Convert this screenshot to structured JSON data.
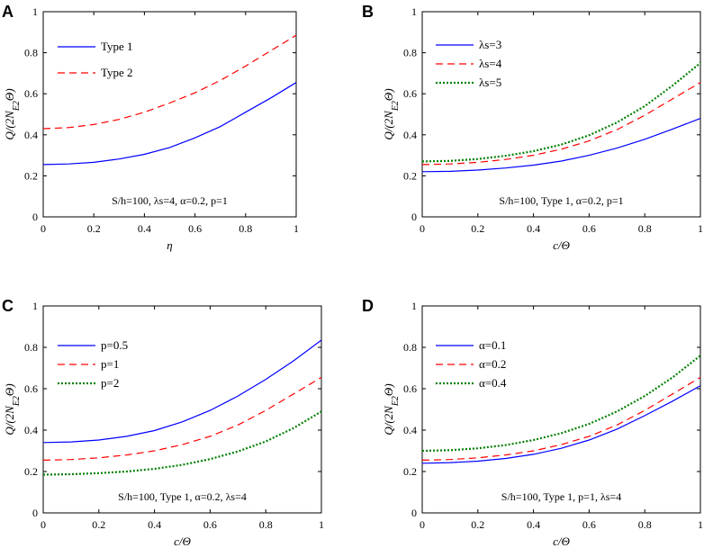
{
  "chart_data": [
    {
      "panel": "A",
      "type": "line",
      "title": "",
      "xlabel": "η",
      "ylabel": "Q/(2N_E2Θ)",
      "xlim": [
        0,
        1
      ],
      "ylim": [
        0,
        1
      ],
      "xticks": [
        "0",
        "0.2",
        "0.4",
        "0.6",
        "0.8",
        "1"
      ],
      "yticks": [
        "0",
        "0.2",
        "0.4",
        "0.6",
        "0.8",
        "1"
      ],
      "annotation": "S/h=100, λs=4, α=0.2, p=1",
      "legend_position": "top-left",
      "x": [
        0,
        0.1,
        0.2,
        0.3,
        0.4,
        0.5,
        0.6,
        0.7,
        0.8,
        0.9,
        1.0
      ],
      "series": [
        {
          "name": "Type 1",
          "color": "#0000ff",
          "dash": "solid",
          "values": [
            0.255,
            0.258,
            0.266,
            0.282,
            0.305,
            0.338,
            0.385,
            0.44,
            0.51,
            0.58,
            0.655
          ]
        },
        {
          "name": "Type 2",
          "color": "#ff0000",
          "dash": "dashed",
          "values": [
            0.43,
            0.435,
            0.45,
            0.475,
            0.51,
            0.555,
            0.605,
            0.665,
            0.735,
            0.81,
            0.885
          ]
        }
      ]
    },
    {
      "panel": "B",
      "type": "line",
      "title": "",
      "xlabel": "c/Θ",
      "ylabel": "Q/(2N_E2Θ)",
      "xlim": [
        0,
        1
      ],
      "ylim": [
        0,
        1
      ],
      "xticks": [
        "0",
        "0.2",
        "0.4",
        "0.6",
        "0.8",
        "1"
      ],
      "yticks": [
        "0",
        "0.2",
        "0.4",
        "0.6",
        "0.8",
        "1"
      ],
      "annotation": "S/h=100, Type 1, α=0.2, p=1",
      "legend_position": "top-left",
      "x": [
        0,
        0.1,
        0.2,
        0.3,
        0.4,
        0.5,
        0.6,
        0.7,
        0.8,
        0.9,
        1.0
      ],
      "series": [
        {
          "name": "λs=3",
          "color": "#0000ff",
          "dash": "solid",
          "values": [
            0.22,
            0.222,
            0.228,
            0.238,
            0.252,
            0.272,
            0.3,
            0.335,
            0.378,
            0.428,
            0.48
          ]
        },
        {
          "name": "λs=4",
          "color": "#ff0000",
          "dash": "dashed",
          "values": [
            0.255,
            0.258,
            0.266,
            0.28,
            0.3,
            0.33,
            0.37,
            0.425,
            0.495,
            0.575,
            0.655
          ]
        },
        {
          "name": "λs=5",
          "color": "#008000",
          "dash": "dotted",
          "values": [
            0.27,
            0.273,
            0.282,
            0.298,
            0.32,
            0.352,
            0.398,
            0.46,
            0.54,
            0.64,
            0.75
          ]
        }
      ]
    },
    {
      "panel": "C",
      "type": "line",
      "title": "",
      "xlabel": "c/Θ",
      "ylabel": "Q/(2N_E2Θ)",
      "xlim": [
        0,
        1
      ],
      "ylim": [
        0,
        1
      ],
      "xticks": [
        "0",
        "0.2",
        "0.4",
        "0.6",
        "0.8",
        "1"
      ],
      "yticks": [
        "0",
        "0.2",
        "0.4",
        "0.6",
        "0.8",
        "1"
      ],
      "annotation": "S/h=100, Type 1, α=0.2, λs=4",
      "legend_position": "top-left",
      "x": [
        0,
        0.1,
        0.2,
        0.3,
        0.4,
        0.5,
        0.6,
        0.7,
        0.8,
        0.9,
        1.0
      ],
      "series": [
        {
          "name": "p=0.5",
          "color": "#0000ff",
          "dash": "solid",
          "values": [
            0.34,
            0.343,
            0.352,
            0.37,
            0.398,
            0.44,
            0.495,
            0.565,
            0.645,
            0.735,
            0.835
          ]
        },
        {
          "name": "p=1",
          "color": "#ff0000",
          "dash": "dashed",
          "values": [
            0.255,
            0.258,
            0.266,
            0.28,
            0.3,
            0.33,
            0.37,
            0.425,
            0.495,
            0.575,
            0.655
          ]
        },
        {
          "name": "p=2",
          "color": "#008000",
          "dash": "dotted",
          "values": [
            0.185,
            0.187,
            0.192,
            0.2,
            0.213,
            0.232,
            0.26,
            0.297,
            0.345,
            0.41,
            0.49
          ]
        }
      ]
    },
    {
      "panel": "D",
      "type": "line",
      "title": "",
      "xlabel": "c/Θ",
      "ylabel": "Q/(2N_E2Θ)",
      "xlim": [
        0,
        1
      ],
      "ylim": [
        0,
        1
      ],
      "xticks": [
        "0",
        "0.2",
        "0.4",
        "0.6",
        "0.8",
        "1"
      ],
      "yticks": [
        "0",
        "0.2",
        "0.4",
        "0.6",
        "0.8",
        "1"
      ],
      "annotation": "S/h=100, Type 1, p=1, λs=4",
      "legend_position": "top-left",
      "x": [
        0,
        0.1,
        0.2,
        0.3,
        0.4,
        0.5,
        0.6,
        0.7,
        0.8,
        0.9,
        1.0
      ],
      "series": [
        {
          "name": "α=0.1",
          "color": "#0000ff",
          "dash": "solid",
          "values": [
            0.24,
            0.243,
            0.25,
            0.263,
            0.283,
            0.312,
            0.352,
            0.405,
            0.47,
            0.54,
            0.615
          ]
        },
        {
          "name": "α=0.2",
          "color": "#ff0000",
          "dash": "dashed",
          "values": [
            0.255,
            0.258,
            0.266,
            0.28,
            0.3,
            0.33,
            0.37,
            0.425,
            0.495,
            0.575,
            0.655
          ]
        },
        {
          "name": "α=0.4",
          "color": "#008000",
          "dash": "dotted",
          "values": [
            0.3,
            0.303,
            0.312,
            0.328,
            0.352,
            0.385,
            0.43,
            0.49,
            0.565,
            0.655,
            0.76
          ]
        }
      ]
    }
  ]
}
